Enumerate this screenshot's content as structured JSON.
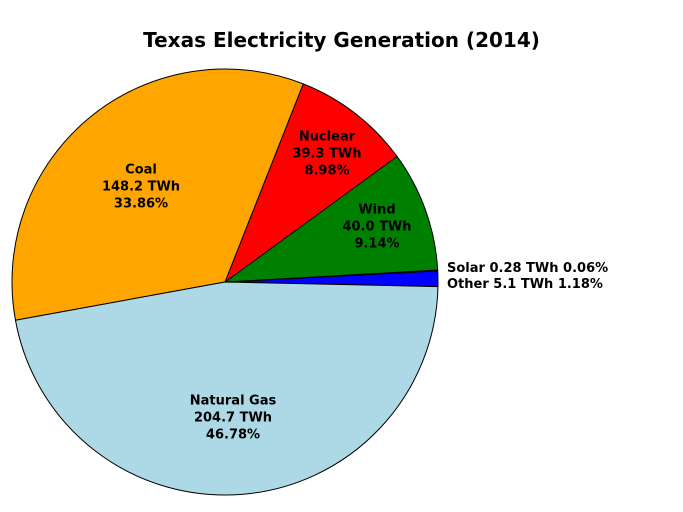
{
  "chart_data": {
    "type": "pie",
    "title": "Texas Electricity Generation (2014)",
    "unit": "TWh",
    "slices": [
      {
        "label": "Coal",
        "value_twh": 148.2,
        "pct": 33.86,
        "value_label": "148.2 TWh",
        "pct_label": "33.86%",
        "color": "#FFA500"
      },
      {
        "label": "Nuclear",
        "value_twh": 39.3,
        "pct": 8.98,
        "value_label": "39.3 TWh",
        "pct_label": "8.98%",
        "color": "#FF0000"
      },
      {
        "label": "Wind",
        "value_twh": 40.0,
        "pct": 9.14,
        "value_label": "40.0 TWh",
        "pct_label": "9.14%",
        "color": "#008000"
      },
      {
        "label": "Natural Gas",
        "value_twh": 204.7,
        "pct": 46.78,
        "value_label": "204.7 TWh",
        "pct_label": "46.78%",
        "color": "#ADD8E6"
      },
      {
        "label": "Solar",
        "value_twh": 0.28,
        "pct": 0.06,
        "value_label": "0.28 TWh",
        "pct_label": "0.06%",
        "color": "#FFD700",
        "outside_line": "Solar 0.28 TWh 0.06%"
      },
      {
        "label": "Other",
        "value_twh": 5.1,
        "pct": 1.18,
        "value_label": "5.1 TWh",
        "pct_label": "1.18%",
        "color": "#0000FF",
        "outside_line": "Other 5.1 TWh 1.18%"
      }
    ],
    "layout": {
      "background": "#FFFFFF",
      "center": [
        225,
        282
      ],
      "radius": 213,
      "start_angle_deg": -1.25,
      "direction": "ccw",
      "draw_order": [
        "Other",
        "Solar",
        "Wind",
        "Nuclear",
        "Coal",
        "Natural Gas"
      ],
      "edge_color": "#000000",
      "legend": "none",
      "grid": "off"
    }
  }
}
